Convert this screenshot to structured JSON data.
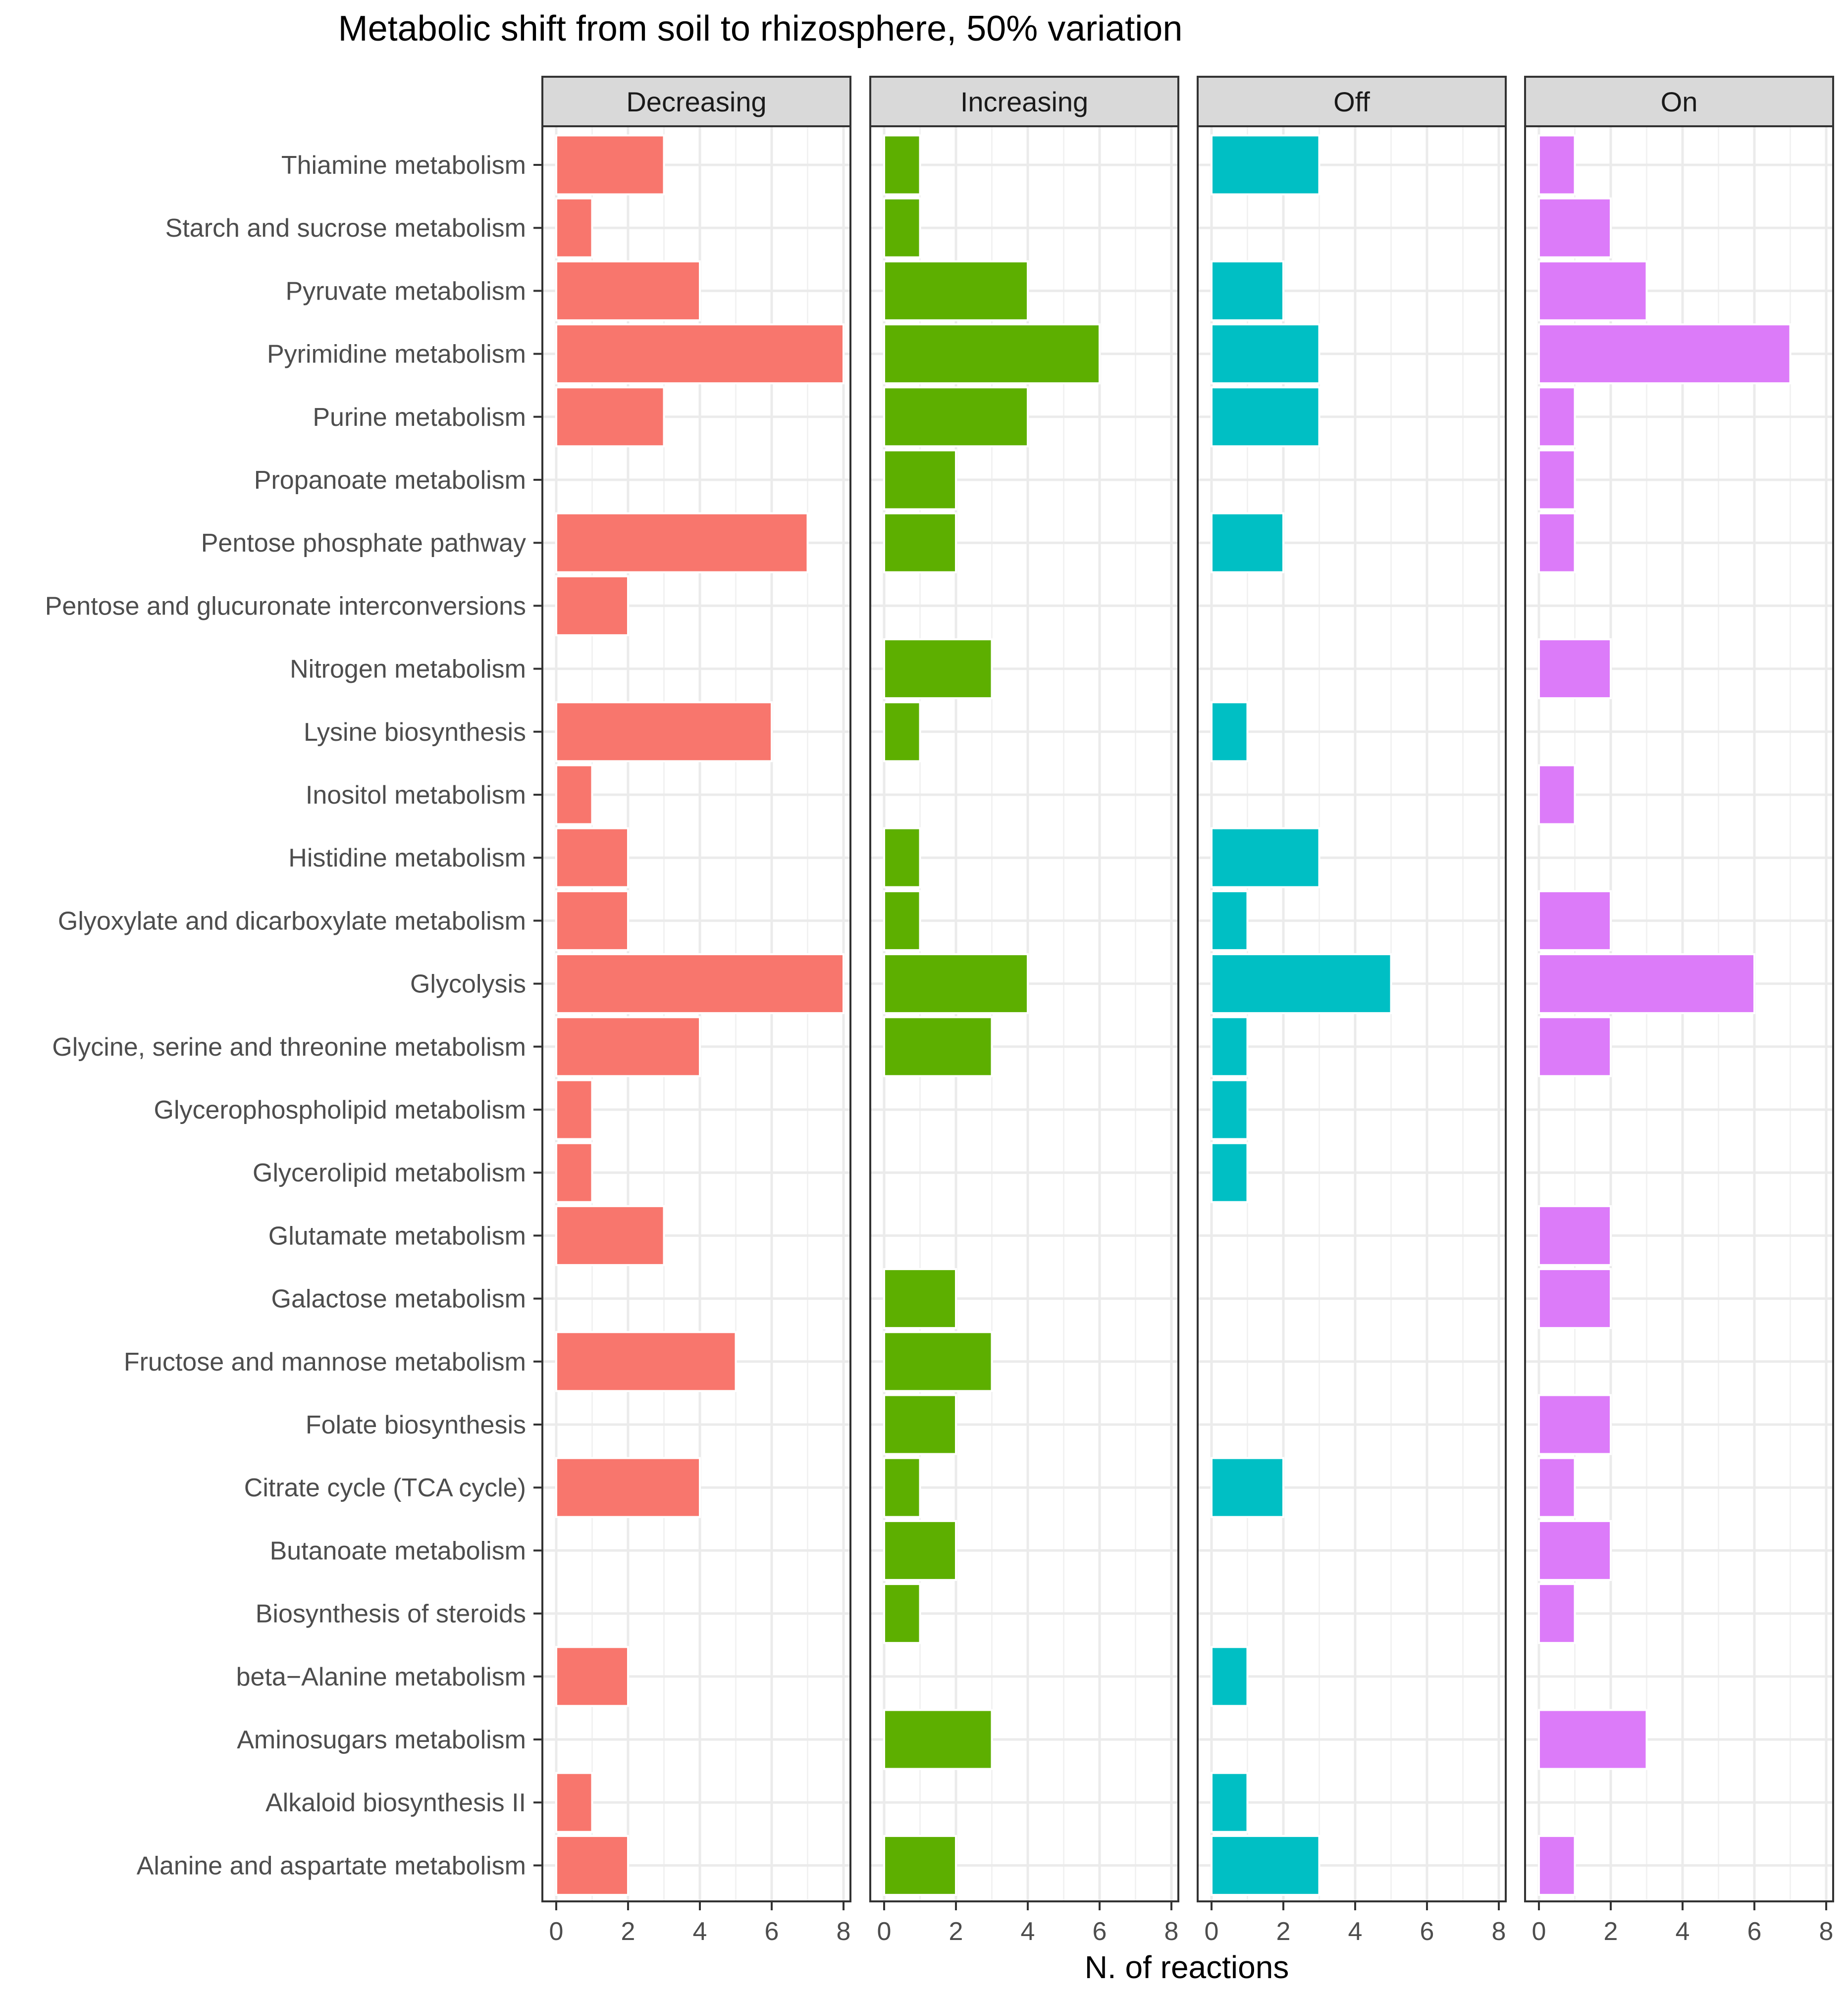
{
  "chart_data": {
    "type": "bar",
    "orientation": "horizontal",
    "title": "Metabolic shift from soil to rhizosphere, 50% variation",
    "xlabel": "N. of reactions",
    "ylabel": "",
    "xlim": [
      0,
      8
    ],
    "xticks": [
      0,
      2,
      4,
      6,
      8
    ],
    "grid": true,
    "legend": "none",
    "categories": [
      "Thiamine metabolism",
      "Starch and sucrose metabolism",
      "Pyruvate metabolism",
      "Pyrimidine metabolism",
      "Purine metabolism",
      "Propanoate metabolism",
      "Pentose phosphate pathway",
      "Pentose and glucuronate interconversions",
      "Nitrogen metabolism",
      "Lysine biosynthesis",
      "Inositol metabolism",
      "Histidine metabolism",
      "Glyoxylate and dicarboxylate metabolism",
      "Glycolysis",
      "Glycine, serine and threonine metabolism",
      "Glycerophospholipid metabolism",
      "Glycerolipid metabolism",
      "Glutamate metabolism",
      "Galactose metabolism",
      "Fructose and mannose metabolism",
      "Folate biosynthesis",
      "Citrate cycle (TCA cycle)",
      "Butanoate metabolism",
      "Biosynthesis of steroids",
      "beta−Alanine metabolism",
      "Aminosugars metabolism",
      "Alkaloid biosynthesis II",
      "Alanine and aspartate metabolism"
    ],
    "series": [
      {
        "name": "Decreasing",
        "color": "#F8766D",
        "values": [
          3,
          1,
          4,
          8,
          3,
          0,
          7,
          2,
          0,
          6,
          1,
          2,
          2,
          8,
          4,
          1,
          1,
          3,
          0,
          5,
          0,
          4,
          0,
          0,
          2,
          0,
          1,
          2
        ]
      },
      {
        "name": "Increasing",
        "color": "#5DAF00",
        "values": [
          1,
          1,
          4,
          6,
          4,
          2,
          2,
          0,
          3,
          1,
          0,
          1,
          1,
          4,
          3,
          0,
          0,
          0,
          2,
          3,
          2,
          1,
          2,
          1,
          0,
          3,
          0,
          2
        ]
      },
      {
        "name": "Off",
        "color": "#00BFC4",
        "values": [
          3,
          0,
          2,
          3,
          3,
          0,
          2,
          0,
          0,
          1,
          0,
          3,
          1,
          5,
          1,
          1,
          1,
          0,
          0,
          0,
          0,
          2,
          0,
          0,
          1,
          0,
          1,
          3
        ]
      },
      {
        "name": "On",
        "color": "#DC7BF9",
        "values": [
          1,
          2,
          3,
          7,
          1,
          1,
          1,
          0,
          2,
          0,
          1,
          0,
          2,
          6,
          2,
          0,
          0,
          2,
          2,
          0,
          2,
          1,
          2,
          1,
          0,
          3,
          0,
          1
        ]
      }
    ]
  }
}
